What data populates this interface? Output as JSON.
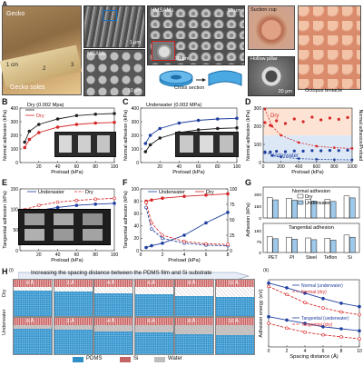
{
  "panel_a": {
    "label": "A",
    "gecko": "Gecko",
    "gecko_soles": "Gecko soles",
    "ruler_cm": "1 cm",
    "ruler_2": "2",
    "ruler_3": "3",
    "sem1_scale": "1 μm",
    "msam_label": "MSAMs",
    "msam_scale": "10 μm",
    "hmsam_label": "HMSAMs",
    "hmsam_scale": "50 μm",
    "hmsam_inset_scale": "20 μm",
    "suction_cup": "Suction cup",
    "hollow_pillar": "Hollow pillar",
    "hollow_scale": "20 μm",
    "cross_section": "Cross section",
    "octopus": "Octopus tentacle"
  },
  "panel_b": {
    "label": "B",
    "title": "Dry (0.002 Mpa)",
    "xlabel": "Preload (kPa)",
    "ylabel": "Normal adhesion (kPa)",
    "legend_dry": "Dry",
    "inset_labels": [
      "Teflon",
      "Si",
      "Steel"
    ],
    "inset_masses": [
      "2.1 kg",
      "1.8 kg",
      "1.7 kg"
    ]
  },
  "panel_c": {
    "label": "C",
    "title": "Underwater (0.002 MPa)",
    "xlabel": "Preload (kPa)",
    "ylabel": "Normal adhesion (kPa)",
    "inset_masses": [
      "1.4 kg",
      "1.3 kg",
      "1.2 kg"
    ]
  },
  "panel_d": {
    "label": "D",
    "xlabel": "Preload (kPa)",
    "ylabel": "Normal adhesion (kPa)",
    "ylabel_right": "Normal adhesion/Preload",
    "series_dry": "Dry",
    "series_under": "Underwater"
  },
  "panel_e": {
    "label": "E",
    "xlabel": "Preload (kPa)",
    "ylabel": "Tangential adhesion (kPa)",
    "legend_under": "Underwater",
    "legend_dry": "Dry"
  },
  "panel_f": {
    "label": "F",
    "xlabel": "Preload (kPa)",
    "ylabel": "Tangential adhesion (kPa)",
    "ylabel_right": "",
    "legend_under": "Underwater",
    "legend_dry": "Dry"
  },
  "panel_g": {
    "label": "G",
    "title_top": "Normal adhesion",
    "title_bottom": "Tangential adhesion",
    "legend_dry": "Dry",
    "legend_under": "Underwater",
    "ylabel": "Adhesion (kPa)",
    "categories": [
      "PET",
      "PI",
      "Steel",
      "Teflon",
      "Si"
    ]
  },
  "panel_h": {
    "label": "H",
    "sub_i": "(i)",
    "sub_ii": "(ii)",
    "banner": "Increasing the spacing distance between the PDMS film and Si substrate",
    "row1_side": "Dry",
    "row2_side": "Underwater",
    "spacings": [
      "0 Å",
      "2 Å",
      "4 Å",
      "6 Å",
      "8 Å",
      "10 Å"
    ],
    "legend": [
      "PDMS",
      "Si",
      "Water"
    ],
    "legend_colors": [
      "#2f8fc7",
      "#c66464",
      "#bdbdbd"
    ],
    "xlabel": "Spacing distance (Å)",
    "ylabel": "Adhesion energy (eV)",
    "series": [
      "Normal (underwater)",
      "Normal (dry)",
      "Tangential (underwater)",
      "Tangential (dry)"
    ]
  },
  "chart_data": [
    {
      "id": "B",
      "type": "line",
      "title": "Dry (0.002 Mpa)",
      "xlabel": "Preload (kPa)",
      "ylabel": "Normal adhesion (kPa)",
      "xlim": [
        0,
        100
      ],
      "ylim": [
        0,
        400
      ],
      "x_ticks": [
        20,
        40,
        60,
        80,
        100
      ],
      "y_ticks": [
        0,
        100,
        200,
        300,
        400
      ],
      "series": [
        {
          "name": "",
          "color": "#222222",
          "x": [
            5,
            10,
            20,
            40,
            60,
            80,
            100
          ],
          "y": [
            150,
            230,
            280,
            320,
            345,
            355,
            360
          ]
        },
        {
          "name": "Dry",
          "color": "#d62728",
          "x": [
            5,
            10,
            20,
            40,
            60,
            80,
            100
          ],
          "y": [
            110,
            170,
            220,
            260,
            280,
            290,
            295
          ]
        }
      ]
    },
    {
      "id": "C",
      "type": "line",
      "title": "Underwater (0.002 MPa)",
      "xlabel": "Preload (kPa)",
      "ylabel": "Normal adhesion (kPa)",
      "xlim": [
        0,
        100
      ],
      "ylim": [
        0,
        400
      ],
      "x_ticks": [
        20,
        40,
        60,
        80,
        100
      ],
      "y_ticks": [
        0,
        100,
        200,
        300,
        400
      ],
      "series": [
        {
          "name": "Underwater",
          "color": "#1f3f9f",
          "x": [
            5,
            10,
            20,
            40,
            60,
            80,
            100
          ],
          "y": [
            140,
            200,
            250,
            290,
            310,
            320,
            325
          ]
        },
        {
          "name": "",
          "color": "#222222",
          "x": [
            5,
            10,
            20,
            40,
            60,
            80,
            100
          ],
          "y": [
            80,
            130,
            180,
            220,
            240,
            250,
            255
          ]
        }
      ]
    },
    {
      "id": "D",
      "type": "scatter",
      "xlabel": "Preload (kPa)",
      "ylabel": "Normal adhesion (kPa)",
      "xlim": [
        0,
        1000
      ],
      "ylim": [
        0,
        300
      ],
      "x_ticks": [
        0,
        200,
        400,
        600,
        800,
        1000
      ],
      "y_ticks": [
        0,
        100,
        200,
        300
      ],
      "series": [
        {
          "name": "Dry",
          "color": "#d62728",
          "x": [
            20,
            80,
            150,
            250,
            350,
            450,
            550,
            650,
            750,
            850,
            950
          ],
          "y": [
            220,
            205,
            230,
            215,
            240,
            225,
            250,
            235,
            245,
            238,
            248
          ]
        },
        {
          "name": "Underwater",
          "color": "#1f3f9f",
          "x": [
            20,
            80,
            150,
            250,
            350,
            450,
            550,
            650,
            750,
            850,
            950
          ],
          "y": [
            55,
            58,
            62,
            60,
            64,
            63,
            66,
            65,
            67,
            66,
            68
          ]
        },
        {
          "name": "",
          "color": "#d62728",
          "x": [
            20,
            100,
            200,
            400,
            600,
            800,
            1000
          ],
          "y": [
            295,
            200,
            150,
            110,
            90,
            82,
            78
          ]
        },
        {
          "name": "",
          "color": "#1f3f9f",
          "x": [
            20,
            100,
            200,
            400,
            600,
            800,
            1000
          ],
          "y": [
            60,
            40,
            30,
            22,
            18,
            16,
            15
          ]
        }
      ]
    },
    {
      "id": "E",
      "type": "line",
      "xlabel": "Preload (kPa)",
      "ylabel": "Tangential adhesion (kPa)",
      "xlim": [
        0,
        100
      ],
      "ylim": [
        0,
        150
      ],
      "x_ticks": [
        20,
        40,
        60,
        80,
        100
      ],
      "y_ticks": [
        0,
        50,
        100,
        150
      ],
      "series": [
        {
          "name": "Underwater",
          "color": "#1f3f9f",
          "x": [
            5,
            20,
            40,
            60,
            80,
            100
          ],
          "y": [
            90,
            98,
            105,
            110,
            113,
            115
          ]
        },
        {
          "name": "Dry",
          "color": "#d62728",
          "x": [
            5,
            20,
            40,
            60,
            80,
            100
          ],
          "y": [
            100,
            110,
            118,
            122,
            125,
            127
          ]
        }
      ]
    },
    {
      "id": "F",
      "type": "line",
      "xlabel": "Preload (kPa)",
      "ylabel": "Tangential adhesion (kPa)",
      "xlim": [
        0,
        8
      ],
      "ylim": [
        0,
        100
      ],
      "x_ticks": [
        0,
        2,
        4,
        6,
        8
      ],
      "y_ticks": [
        0,
        20,
        40,
        60,
        80,
        100
      ],
      "series": [
        {
          "name": "Underwater",
          "color": "#1f3f9f",
          "x": [
            0.5,
            1,
            2,
            4,
            6,
            8
          ],
          "y": [
            5,
            8,
            12,
            25,
            45,
            62
          ]
        },
        {
          "name": "Dry",
          "color": "#d62728",
          "x": [
            0.5,
            1,
            2,
            4,
            6,
            8
          ],
          "y": [
            80,
            82,
            85,
            88,
            90,
            92
          ]
        },
        {
          "name": "",
          "color": "#1f3f9f",
          "x": [
            0.5,
            1,
            2,
            4,
            6,
            8
          ],
          "y": [
            70,
            35,
            20,
            12,
            9,
            8
          ]
        },
        {
          "name": "",
          "color": "#d62728",
          "x": [
            0.5,
            1,
            2,
            4,
            6,
            8
          ],
          "y": [
            78,
            45,
            25,
            15,
            11,
            10
          ]
        }
      ]
    },
    {
      "id": "G",
      "type": "bar",
      "categories": [
        "PET",
        "PI",
        "Steel",
        "Teflon",
        "Si"
      ],
      "panels": [
        {
          "title": "Normal adhesion",
          "ylim": [
            0,
            300
          ],
          "series": [
            {
              "name": "Dry",
              "color": "#ffffff",
              "values": [
                260,
                250,
                240,
                235,
                280
              ]
            },
            {
              "name": "Underwater",
              "color": "#9ec9ea",
              "values": [
                230,
                225,
                215,
                210,
                255
              ]
            }
          ]
        },
        {
          "title": "Tangential adhesion",
          "ylim": [
            0,
            150
          ],
          "series": [
            {
              "name": "Dry",
              "color": "#ffffff",
              "values": [
                110,
                105,
                100,
                98,
                120
              ]
            },
            {
              "name": "Underwater",
              "color": "#9ec9ea",
              "values": [
                95,
                92,
                88,
                85,
                105
              ]
            }
          ]
        }
      ]
    },
    {
      "id": "H(ii)",
      "type": "line",
      "xlabel": "Spacing distance (Å)",
      "ylabel": "Adhesion energy (eV)",
      "xlim": [
        0,
        10
      ],
      "ylim": [
        0,
        1
      ],
      "x_ticks": [
        0,
        2,
        4,
        6,
        8,
        10
      ],
      "series": [
        {
          "name": "Normal (underwater)",
          "color": "#1f3f9f",
          "x": [
            0,
            2,
            4,
            6,
            8,
            10
          ],
          "y": [
            0.95,
            0.88,
            0.8,
            0.72,
            0.65,
            0.6
          ]
        },
        {
          "name": "Normal (dry)",
          "color": "#d62728",
          "x": [
            0,
            2,
            4,
            6,
            8,
            10
          ],
          "y": [
            0.9,
            0.78,
            0.66,
            0.58,
            0.52,
            0.48
          ]
        },
        {
          "name": "Tangential (underwater)",
          "color": "#1f3f9f",
          "x": [
            0,
            2,
            4,
            6,
            8,
            10
          ],
          "y": [
            0.45,
            0.4,
            0.35,
            0.3,
            0.27,
            0.24
          ]
        },
        {
          "name": "Tangential (dry)",
          "color": "#d62728",
          "x": [
            0,
            2,
            4,
            6,
            8,
            10
          ],
          "y": [
            0.35,
            0.28,
            0.22,
            0.18,
            0.15,
            0.12
          ]
        }
      ]
    }
  ]
}
